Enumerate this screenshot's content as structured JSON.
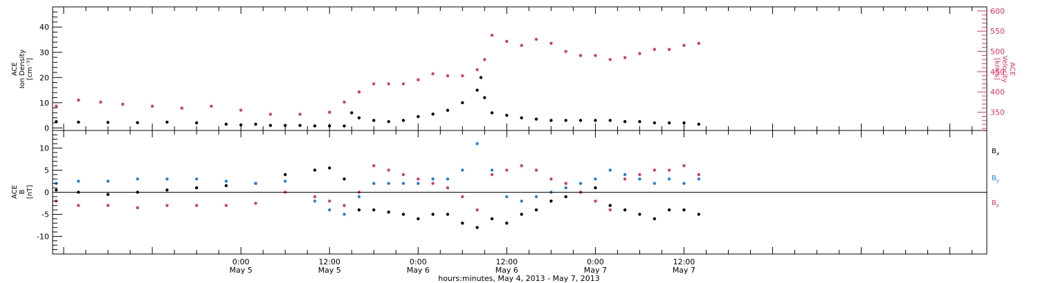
{
  "colors": {
    "density": "#000000",
    "velocity": "#e8325f",
    "bx": "#000000",
    "by": "#1a82e6",
    "bz": "#e8325f",
    "axis": "#000000"
  },
  "x_axis": {
    "title": "hours:minutes, May  4, 2013 - May  7, 2013",
    "range_hours": [
      -25.5,
      101
    ],
    "ticks": [
      {
        "hours": 0,
        "time": "0:00",
        "date": "May 5"
      },
      {
        "hours": 12,
        "time": "12:00",
        "date": "May 5"
      },
      {
        "hours": 24,
        "time": "0:00",
        "date": "May 6"
      },
      {
        "hours": 36,
        "time": "12:00",
        "date": "May 6"
      },
      {
        "hours": 48,
        "time": "0:00",
        "date": "May 7"
      },
      {
        "hours": 60,
        "time": "12:00",
        "date": "May 7"
      }
    ]
  },
  "top_panel": {
    "left_label_lines": [
      "ACE",
      "Ion Density",
      "[cm⁻³]"
    ],
    "right_label_lines": [
      "ACE",
      "Velocity",
      "[km/s]"
    ],
    "left_ylim": [
      -1,
      48
    ],
    "left_ticks": [
      0,
      10,
      20,
      30,
      40
    ],
    "right_ylim": [
      305,
      610
    ],
    "right_ticks": [
      350,
      400,
      450,
      500,
      550,
      600
    ]
  },
  "bottom_panel": {
    "label_lines": [
      "ACE",
      "B",
      "[nT]"
    ],
    "ylim": [
      -14,
      14
    ],
    "ticks": [
      -10,
      -5,
      0,
      5,
      10
    ],
    "legend": [
      "Bx",
      "By",
      "Bz"
    ]
  },
  "chart_data": [
    {
      "type": "scatter",
      "title": "",
      "xlabel": "hours:minutes, May  4, 2013 - May  7, 2013",
      "x_units": "hours from May 5 0:00",
      "xlim": [
        -25.5,
        101
      ],
      "series": [
        {
          "name": "Ion Density",
          "axis": "left",
          "ylabel": "ACE Ion Density [cm⁻³]",
          "ylim": [
            -1,
            48
          ],
          "x": [
            -25,
            -22,
            -18,
            -14,
            -10,
            -6,
            -2,
            0,
            2,
            4,
            6,
            8,
            10,
            12,
            14,
            15,
            16,
            18,
            20,
            22,
            24,
            26,
            28,
            30,
            32,
            32.5,
            33,
            34,
            36,
            38,
            40,
            42,
            44,
            46,
            48,
            50,
            52,
            54,
            56,
            58,
            60,
            62
          ],
          "y": [
            2.5,
            2.3,
            2.2,
            2.1,
            2.3,
            2.0,
            1.5,
            1.2,
            1.5,
            1.0,
            1.0,
            1.0,
            0.8,
            0.8,
            0.8,
            6,
            4,
            3,
            2.5,
            3,
            4.5,
            5.5,
            7,
            10,
            15,
            20,
            12,
            6,
            5,
            4,
            3.5,
            3,
            3,
            3,
            3,
            3,
            2.5,
            2.5,
            2,
            2,
            2,
            1.5
          ]
        },
        {
          "name": "Velocity",
          "axis": "right",
          "ylabel": "ACE Velocity [km/s]",
          "ylim": [
            305,
            610
          ],
          "x": [
            -25,
            -22,
            -19,
            -16,
            -12,
            -8,
            -4,
            0,
            4,
            8,
            12,
            14,
            16,
            18,
            20,
            22,
            24,
            26,
            28,
            30,
            32,
            33,
            34,
            36,
            38,
            40,
            42,
            44,
            46,
            48,
            50,
            52,
            54,
            56,
            58,
            60,
            62
          ],
          "y": [
            365,
            380,
            375,
            370,
            365,
            360,
            365,
            355,
            345,
            345,
            350,
            375,
            400,
            420,
            420,
            420,
            430,
            445,
            440,
            440,
            455,
            480,
            540,
            525,
            515,
            530,
            520,
            500,
            490,
            490,
            480,
            485,
            495,
            505,
            505,
            515,
            520
          ]
        },
        {
          "name": "Bx",
          "axis": "bottom",
          "ylabel": "ACE B [nT]",
          "ylim": [
            -14,
            14
          ],
          "x": [
            -25,
            -22,
            -18,
            -14,
            -10,
            -6,
            -2,
            2,
            6,
            10,
            12,
            14,
            16,
            18,
            20,
            22,
            24,
            26,
            28,
            30,
            32,
            34,
            36,
            38,
            40,
            42,
            44,
            46,
            48,
            50,
            52,
            54,
            56,
            58,
            60,
            62
          ],
          "y": [
            0.5,
            0,
            -0.5,
            0,
            0.5,
            1,
            1.5,
            2,
            4,
            5,
            5.5,
            3,
            -4,
            -4,
            -4.5,
            -5,
            -6,
            -5,
            -5,
            -7,
            -8,
            -6,
            -7,
            -5,
            -4,
            -2,
            -1,
            0,
            1,
            -3,
            -4,
            -5,
            -6,
            -4,
            -4,
            -5
          ]
        },
        {
          "name": "By",
          "axis": "bottom",
          "ylabel": "ACE B [nT]",
          "ylim": [
            -14,
            14
          ],
          "x": [
            -25,
            -22,
            -18,
            -14,
            -10,
            -6,
            -2,
            2,
            6,
            10,
            12,
            14,
            16,
            18,
            20,
            22,
            24,
            26,
            28,
            30,
            32,
            34,
            36,
            38,
            40,
            42,
            44,
            46,
            48,
            50,
            52,
            54,
            56,
            58,
            60,
            62
          ],
          "y": [
            2,
            2.5,
            2.5,
            3,
            3,
            3,
            2.5,
            2,
            2.5,
            -2,
            -4,
            -5,
            -1,
            2,
            2,
            2,
            2,
            3,
            3,
            5,
            11,
            5,
            -1,
            -2,
            -1,
            0,
            1,
            2,
            3,
            5,
            4,
            3,
            2,
            3,
            2,
            3
          ]
        },
        {
          "name": "Bz",
          "axis": "bottom",
          "ylabel": "ACE B [nT]",
          "ylim": [
            -14,
            14
          ],
          "x": [
            -25,
            -22,
            -18,
            -14,
            -10,
            -6,
            -2,
            2,
            6,
            10,
            12,
            14,
            16,
            18,
            20,
            22,
            24,
            26,
            28,
            30,
            32,
            34,
            36,
            38,
            40,
            42,
            44,
            46,
            48,
            50,
            52,
            54,
            56,
            58,
            60,
            62
          ],
          "y": [
            -2,
            -3,
            -3,
            -3.5,
            -3,
            -3,
            -3,
            -2.5,
            0,
            -1,
            -2,
            -3,
            0,
            6,
            5,
            4,
            3,
            2,
            1,
            -1,
            -4,
            4,
            5,
            6,
            5,
            3,
            2,
            0,
            -2,
            -4,
            3,
            4,
            5,
            5,
            6,
            4
          ]
        }
      ]
    }
  ]
}
